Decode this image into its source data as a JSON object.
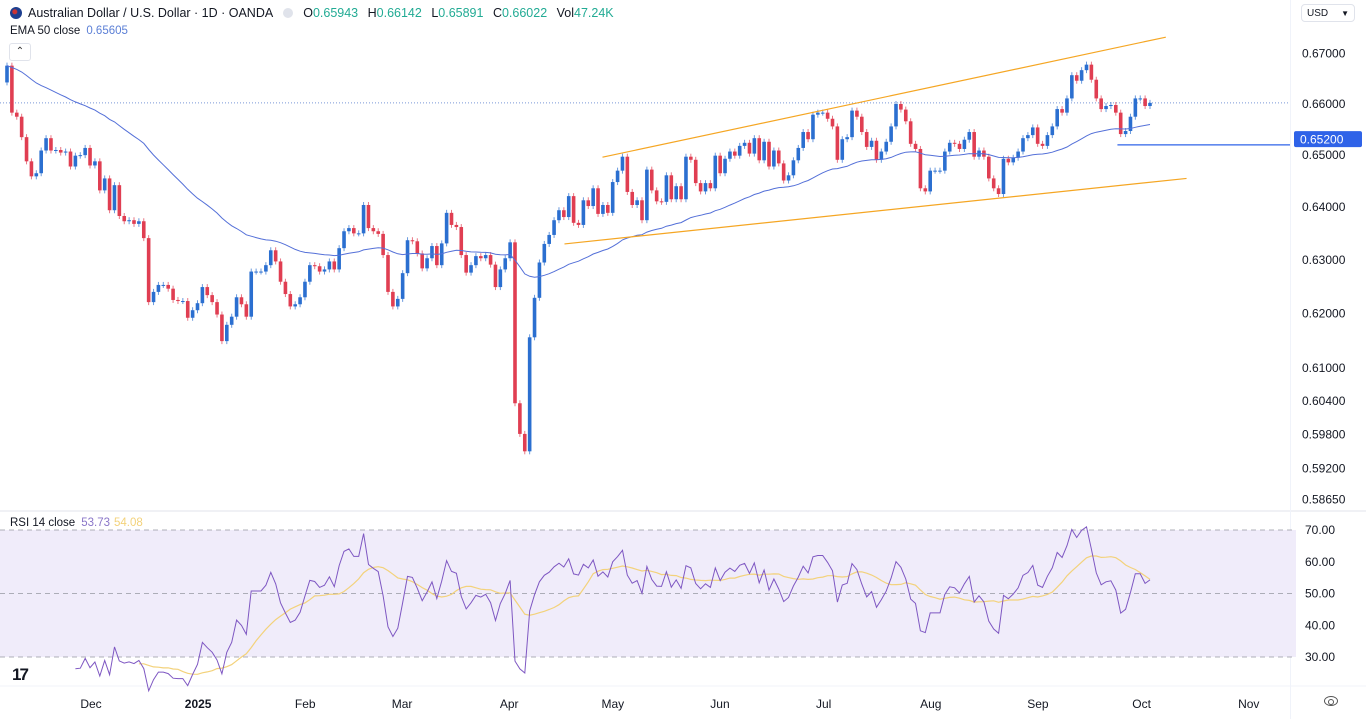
{
  "header": {
    "title": "Australian Dollar / U.S. Dollar · 1D · OANDA",
    "ohlc": {
      "o_label": "O",
      "o": "0.65943",
      "h_label": "H",
      "h": "0.66142",
      "l_label": "L",
      "l": "0.65891",
      "c_label": "C",
      "c": "0.66022",
      "vol_label": "Vol",
      "vol": "47.24K"
    },
    "ema_label": "EMA 50 close",
    "ema_value": "0.65605",
    "collapse_icon": "chevron-up-icon"
  },
  "currency": "USD",
  "rsi_legend": {
    "label": "RSI 14 close",
    "value": "53.73",
    "ma_value": "54.08"
  },
  "colors": {
    "up": "#2b6fd0",
    "down": "#e03e52",
    "ema": "#5470d8",
    "trendline": "#f5a623",
    "hline": "#2f63e8",
    "rsi": "#7e57c2",
    "rsi_ma": "#f3d27b",
    "rsi_band": "#f0ecfa",
    "value_green": "#22ab94"
  },
  "chart_data": [
    {
      "type": "candlestick",
      "title": "Australian Dollar / U.S. Dollar · 1D · OANDA",
      "y_scale": "log",
      "y_ticks": [
        "0.67000",
        "0.66000",
        "0.65000",
        "0.64000",
        "0.63000",
        "0.62000",
        "0.61000",
        "0.60400",
        "0.59800",
        "0.59200",
        "0.58650"
      ],
      "x_ticks": [
        {
          "label": "Dec",
          "date": "2024-12-01"
        },
        {
          "label": "2025",
          "date": "2025-01-01",
          "bold": true
        },
        {
          "label": "Feb",
          "date": "2025-02-01"
        },
        {
          "label": "Mar",
          "date": "2025-03-01"
        },
        {
          "label": "Apr",
          "date": "2025-04-01"
        },
        {
          "label": "May",
          "date": "2025-05-01"
        },
        {
          "label": "Jun",
          "date": "2025-06-01"
        },
        {
          "label": "Jul",
          "date": "2025-07-01"
        },
        {
          "label": "Aug",
          "date": "2025-08-01"
        },
        {
          "label": "Sep",
          "date": "2025-09-01"
        },
        {
          "label": "Oct",
          "date": "2025-10-01"
        },
        {
          "label": "Nov",
          "date": "2025-11-01"
        }
      ],
      "closes": [
        0.6676,
        0.6583,
        0.6575,
        0.6535,
        0.6488,
        0.6459,
        0.6465,
        0.6509,
        0.6533,
        0.6509,
        0.651,
        0.6505,
        0.6507,
        0.6478,
        0.6499,
        0.65,
        0.6514,
        0.648,
        0.6488,
        0.6432,
        0.6455,
        0.6394,
        0.6442,
        0.6383,
        0.6373,
        0.6375,
        0.6368,
        0.6373,
        0.6341,
        0.6221,
        0.624,
        0.6253,
        0.6253,
        0.6246,
        0.6225,
        0.6223,
        0.6223,
        0.6192,
        0.6206,
        0.6219,
        0.6249,
        0.6234,
        0.6221,
        0.6198,
        0.6149,
        0.6179,
        0.6194,
        0.623,
        0.6217,
        0.6194,
        0.6278,
        0.6278,
        0.6278,
        0.629,
        0.6318,
        0.6297,
        0.6259,
        0.6236,
        0.6213,
        0.6217,
        0.623,
        0.6259,
        0.629,
        0.6288,
        0.6278,
        0.6282,
        0.6297,
        0.6282,
        0.6322,
        0.6354,
        0.636,
        0.635,
        0.635,
        0.6404,
        0.636,
        0.6354,
        0.6349,
        0.6309,
        0.624,
        0.6213,
        0.6227,
        0.6275,
        0.6337,
        0.6335,
        0.6312,
        0.6284,
        0.6303,
        0.6326,
        0.629,
        0.6331,
        0.6389,
        0.6366,
        0.6362,
        0.6309,
        0.6276,
        0.629,
        0.6307,
        0.6303,
        0.6309,
        0.6291,
        0.6249,
        0.6282,
        0.6303,
        0.6333,
        0.6036,
        0.5981,
        0.595,
        0.6156,
        0.6229,
        0.6295,
        0.633,
        0.6347,
        0.6375,
        0.6394,
        0.6381,
        0.6421,
        0.637,
        0.6366,
        0.6413,
        0.6402,
        0.6436,
        0.6387,
        0.6404,
        0.6389,
        0.6448,
        0.647,
        0.6497,
        0.6429,
        0.6404,
        0.6413,
        0.6375,
        0.6472,
        0.6432,
        0.6411,
        0.641,
        0.6461,
        0.6415,
        0.644,
        0.6415,
        0.6497,
        0.6491,
        0.6446,
        0.643,
        0.6446,
        0.6436,
        0.6499,
        0.6465,
        0.6493,
        0.6507,
        0.6499,
        0.6518,
        0.6524,
        0.6503,
        0.6533,
        0.649,
        0.6526,
        0.6478,
        0.6509,
        0.6484,
        0.6451,
        0.6461,
        0.649,
        0.6514,
        0.6545,
        0.6531,
        0.6579,
        0.6583,
        0.6583,
        0.6571,
        0.6556,
        0.6491,
        0.6531,
        0.6535,
        0.6587,
        0.6575,
        0.6545,
        0.6516,
        0.6528,
        0.6491,
        0.6507,
        0.6526,
        0.6556,
        0.66,
        0.6589,
        0.6566,
        0.6522,
        0.6512,
        0.6436,
        0.643,
        0.647,
        0.647,
        0.647,
        0.6507,
        0.6524,
        0.6522,
        0.6512,
        0.653,
        0.6545,
        0.6497,
        0.6509,
        0.6497,
        0.6455,
        0.6436,
        0.6425,
        0.6493,
        0.6486,
        0.6495,
        0.6507,
        0.6533,
        0.6539,
        0.6554,
        0.6522,
        0.6518,
        0.6539,
        0.6556,
        0.659,
        0.6583,
        0.6611,
        0.6657,
        0.6646,
        0.6667,
        0.6678,
        0.6648,
        0.6611,
        0.659,
        0.6596,
        0.6598,
        0.6583,
        0.6541,
        0.6547,
        0.6575,
        0.6611,
        0.6611,
        0.6596,
        0.66022
      ],
      "indicators": [
        {
          "name": "EMA 50 close",
          "period": 50
        }
      ],
      "current_price": 0.66022,
      "drawings": {
        "upper_trendline": {
          "from": {
            "date": "2025-04-28",
            "price": 0.6496
          },
          "to": {
            "date": "2025-10-08",
            "price": 0.6733
          }
        },
        "lower_trendline": {
          "from": {
            "date": "2025-04-17",
            "price": 0.633
          },
          "to": {
            "date": "2025-10-14",
            "price": 0.6455
          }
        },
        "horizontal_line": {
          "from_date": "2025-09-24",
          "price": 0.652,
          "label": "0.65200"
        }
      }
    },
    {
      "type": "line",
      "title": "RSI 14 close",
      "period": 14,
      "ma_period": 14,
      "y_ticks": [
        "70.00",
        "60.00",
        "50.00",
        "40.00",
        "30.00"
      ],
      "levels": [
        70,
        50,
        30
      ],
      "ylim": [
        30,
        70
      ]
    }
  ]
}
